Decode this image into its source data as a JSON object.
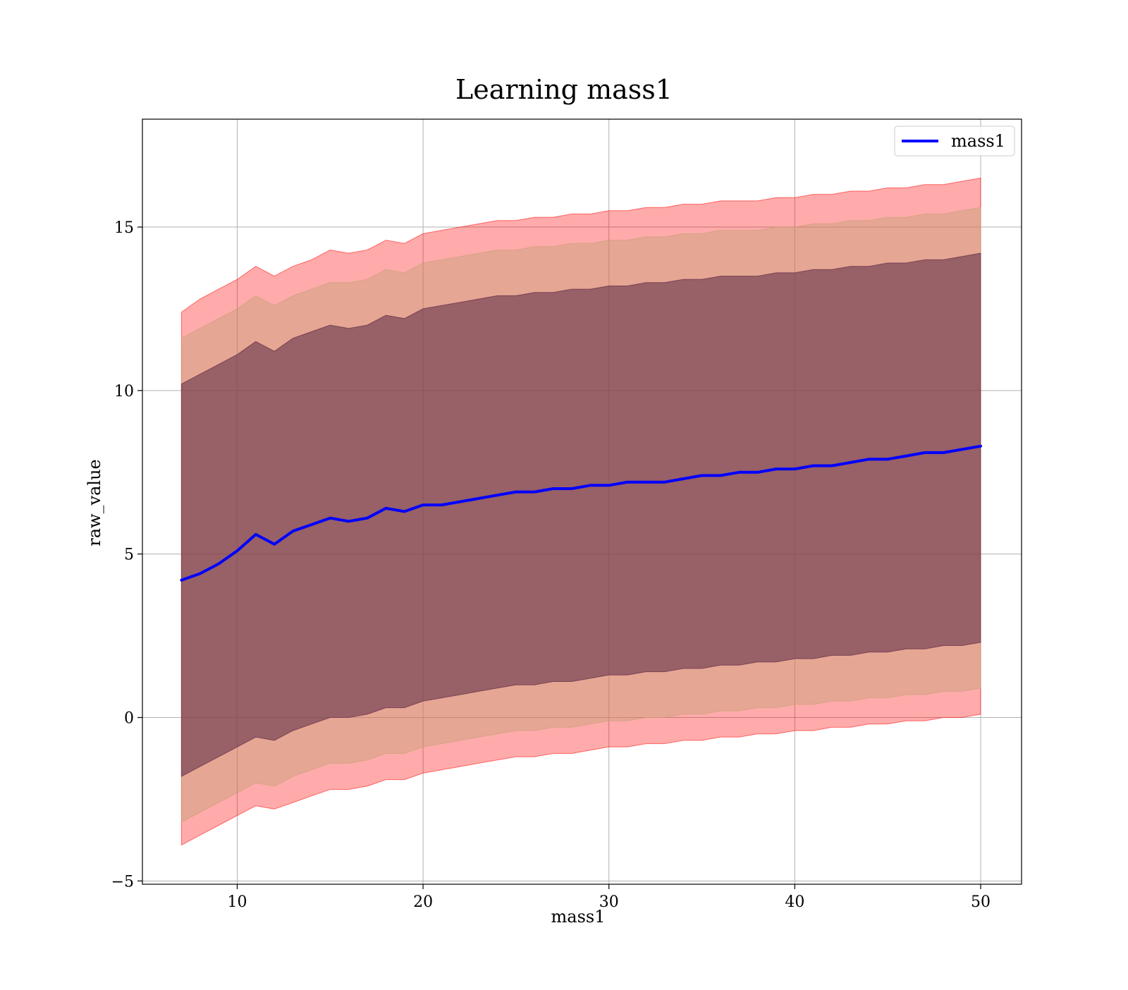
{
  "chart_data": {
    "type": "area",
    "title": "Learning mass1",
    "xlabel": "mass1",
    "ylabel": "raw_value",
    "xlim": [
      4.9,
      52.2
    ],
    "ylim": [
      -5.1,
      18.3
    ],
    "x_ticks": [
      10,
      20,
      30,
      40,
      50
    ],
    "y_ticks": [
      -5,
      0,
      5,
      10,
      15
    ],
    "x_tick_labels": [
      "10",
      "20",
      "30",
      "40",
      "50"
    ],
    "y_tick_labels": [
      "−5",
      "0",
      "5",
      "10",
      "15"
    ],
    "grid": true,
    "legend": {
      "position": "top-right",
      "entries": [
        {
          "label": "mass1",
          "color": "#0000ff"
        }
      ]
    },
    "x": [
      7,
      8,
      9,
      10,
      11,
      12,
      13,
      14,
      15,
      16,
      17,
      18,
      19,
      20,
      21,
      22,
      23,
      24,
      25,
      26,
      27,
      28,
      29,
      30,
      31,
      32,
      33,
      34,
      35,
      36,
      37,
      38,
      39,
      40,
      41,
      42,
      43,
      44,
      45,
      46,
      47,
      48,
      49,
      50
    ],
    "series": [
      {
        "name": "mass1",
        "color": "#0000ff",
        "values": [
          4.2,
          4.4,
          4.7,
          5.1,
          5.6,
          5.3,
          5.7,
          5.9,
          6.1,
          6.0,
          6.1,
          6.4,
          6.3,
          6.5,
          6.5,
          6.6,
          6.7,
          6.8,
          6.9,
          6.9,
          7.0,
          7.0,
          7.1,
          7.1,
          7.2,
          7.2,
          7.2,
          7.3,
          7.4,
          7.4,
          7.5,
          7.5,
          7.6,
          7.6,
          7.7,
          7.7,
          7.8,
          7.9,
          7.9,
          8.0,
          8.1,
          8.1,
          8.2,
          8.3
        ]
      }
    ],
    "bands": [
      {
        "color": "#ff0000",
        "opacity": 0.33,
        "upper": [
          12.4,
          12.8,
          13.1,
          13.4,
          13.8,
          13.5,
          13.8,
          14.0,
          14.3,
          14.2,
          14.3,
          14.6,
          14.5,
          14.8,
          14.9,
          15.0,
          15.1,
          15.2,
          15.2,
          15.3,
          15.3,
          15.4,
          15.4,
          15.5,
          15.5,
          15.6,
          15.6,
          15.7,
          15.7,
          15.8,
          15.8,
          15.8,
          15.9,
          15.9,
          16.0,
          16.0,
          16.1,
          16.1,
          16.2,
          16.2,
          16.3,
          16.3,
          16.4,
          16.5
        ],
        "lower": [
          -3.9,
          -3.6,
          -3.3,
          -3.0,
          -2.7,
          -2.8,
          -2.6,
          -2.4,
          -2.2,
          -2.2,
          -2.1,
          -1.9,
          -1.9,
          -1.7,
          -1.6,
          -1.5,
          -1.4,
          -1.3,
          -1.2,
          -1.2,
          -1.1,
          -1.1,
          -1.0,
          -0.9,
          -0.9,
          -0.8,
          -0.8,
          -0.7,
          -0.7,
          -0.6,
          -0.6,
          -0.5,
          -0.5,
          -0.4,
          -0.4,
          -0.3,
          -0.3,
          -0.2,
          -0.2,
          -0.1,
          -0.1,
          0.0,
          0.0,
          0.1
        ]
      },
      {
        "color": "#c8a078",
        "opacity": 0.45,
        "upper": [
          11.6,
          11.9,
          12.2,
          12.5,
          12.9,
          12.6,
          12.9,
          13.1,
          13.3,
          13.3,
          13.4,
          13.7,
          13.6,
          13.9,
          14.0,
          14.1,
          14.2,
          14.3,
          14.3,
          14.4,
          14.4,
          14.5,
          14.5,
          14.6,
          14.6,
          14.7,
          14.7,
          14.8,
          14.8,
          14.9,
          14.9,
          14.9,
          15.0,
          15.0,
          15.1,
          15.1,
          15.2,
          15.2,
          15.3,
          15.3,
          15.4,
          15.4,
          15.5,
          15.6
        ],
        "lower": [
          -3.2,
          -2.9,
          -2.6,
          -2.3,
          -2.0,
          -2.1,
          -1.8,
          -1.6,
          -1.4,
          -1.4,
          -1.3,
          -1.1,
          -1.1,
          -0.9,
          -0.8,
          -0.7,
          -0.6,
          -0.5,
          -0.4,
          -0.4,
          -0.3,
          -0.3,
          -0.2,
          -0.1,
          -0.1,
          0.0,
          0.0,
          0.1,
          0.1,
          0.2,
          0.2,
          0.3,
          0.3,
          0.4,
          0.4,
          0.5,
          0.5,
          0.6,
          0.6,
          0.7,
          0.7,
          0.8,
          0.8,
          0.9
        ]
      },
      {
        "color": "#6e3a4e",
        "opacity": 0.65,
        "upper": [
          10.2,
          10.5,
          10.8,
          11.1,
          11.5,
          11.2,
          11.6,
          11.8,
          12.0,
          11.9,
          12.0,
          12.3,
          12.2,
          12.5,
          12.6,
          12.7,
          12.8,
          12.9,
          12.9,
          13.0,
          13.0,
          13.1,
          13.1,
          13.2,
          13.2,
          13.3,
          13.3,
          13.4,
          13.4,
          13.5,
          13.5,
          13.5,
          13.6,
          13.6,
          13.7,
          13.7,
          13.8,
          13.8,
          13.9,
          13.9,
          14.0,
          14.0,
          14.1,
          14.2
        ],
        "lower": [
          -1.8,
          -1.5,
          -1.2,
          -0.9,
          -0.6,
          -0.7,
          -0.4,
          -0.2,
          0.0,
          0.0,
          0.1,
          0.3,
          0.3,
          0.5,
          0.6,
          0.7,
          0.8,
          0.9,
          1.0,
          1.0,
          1.1,
          1.1,
          1.2,
          1.3,
          1.3,
          1.4,
          1.4,
          1.5,
          1.5,
          1.6,
          1.6,
          1.7,
          1.7,
          1.8,
          1.8,
          1.9,
          1.9,
          2.0,
          2.0,
          2.1,
          2.1,
          2.2,
          2.2,
          2.3
        ]
      }
    ]
  }
}
